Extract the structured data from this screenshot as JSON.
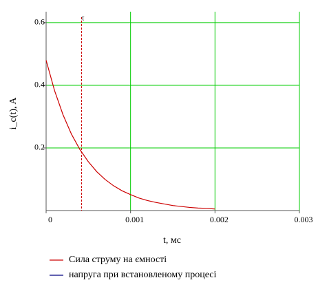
{
  "chart_data": {
    "type": "line",
    "x_label": "t, мс",
    "y_label": "i_c(t), A",
    "x": [
      0,
      0.0001,
      0.0002,
      0.0003,
      0.0004,
      0.0005,
      0.0006,
      0.0007,
      0.0008,
      0.0009,
      0.001,
      0.0011,
      0.0012,
      0.0013,
      0.0014,
      0.0015,
      0.0016,
      0.0017,
      0.0018,
      0.0019,
      0.002
    ],
    "series": [
      {
        "name": "Сила струму на ємності",
        "color": "#cc0000",
        "values": [
          0.48,
          0.383,
          0.306,
          0.244,
          0.195,
          0.156,
          0.124,
          0.099,
          0.079,
          0.063,
          0.051,
          0.04,
          0.032,
          0.026,
          0.021,
          0.016,
          0.013,
          0.01,
          0.008,
          0.007,
          0.005
        ]
      },
      {
        "name": "напруга при встановленому процесі",
        "color": "#000080",
        "values": [
          null,
          null,
          null,
          null,
          null,
          null,
          null,
          null,
          null,
          null,
          null,
          null,
          null,
          null,
          null,
          null,
          null,
          null,
          null,
          null,
          null
        ]
      }
    ],
    "marker": {
      "x": 0.00042,
      "label": "τ",
      "color": "#cc0000"
    },
    "xlim": [
      0,
      0.003
    ],
    "xticks": [
      0,
      0.001,
      0.002,
      0.003
    ],
    "ylim": [
      0,
      0.635
    ],
    "yticks": [
      0.2,
      0.4,
      0.6
    ],
    "grid": true,
    "grid_color": "#00cc00"
  }
}
